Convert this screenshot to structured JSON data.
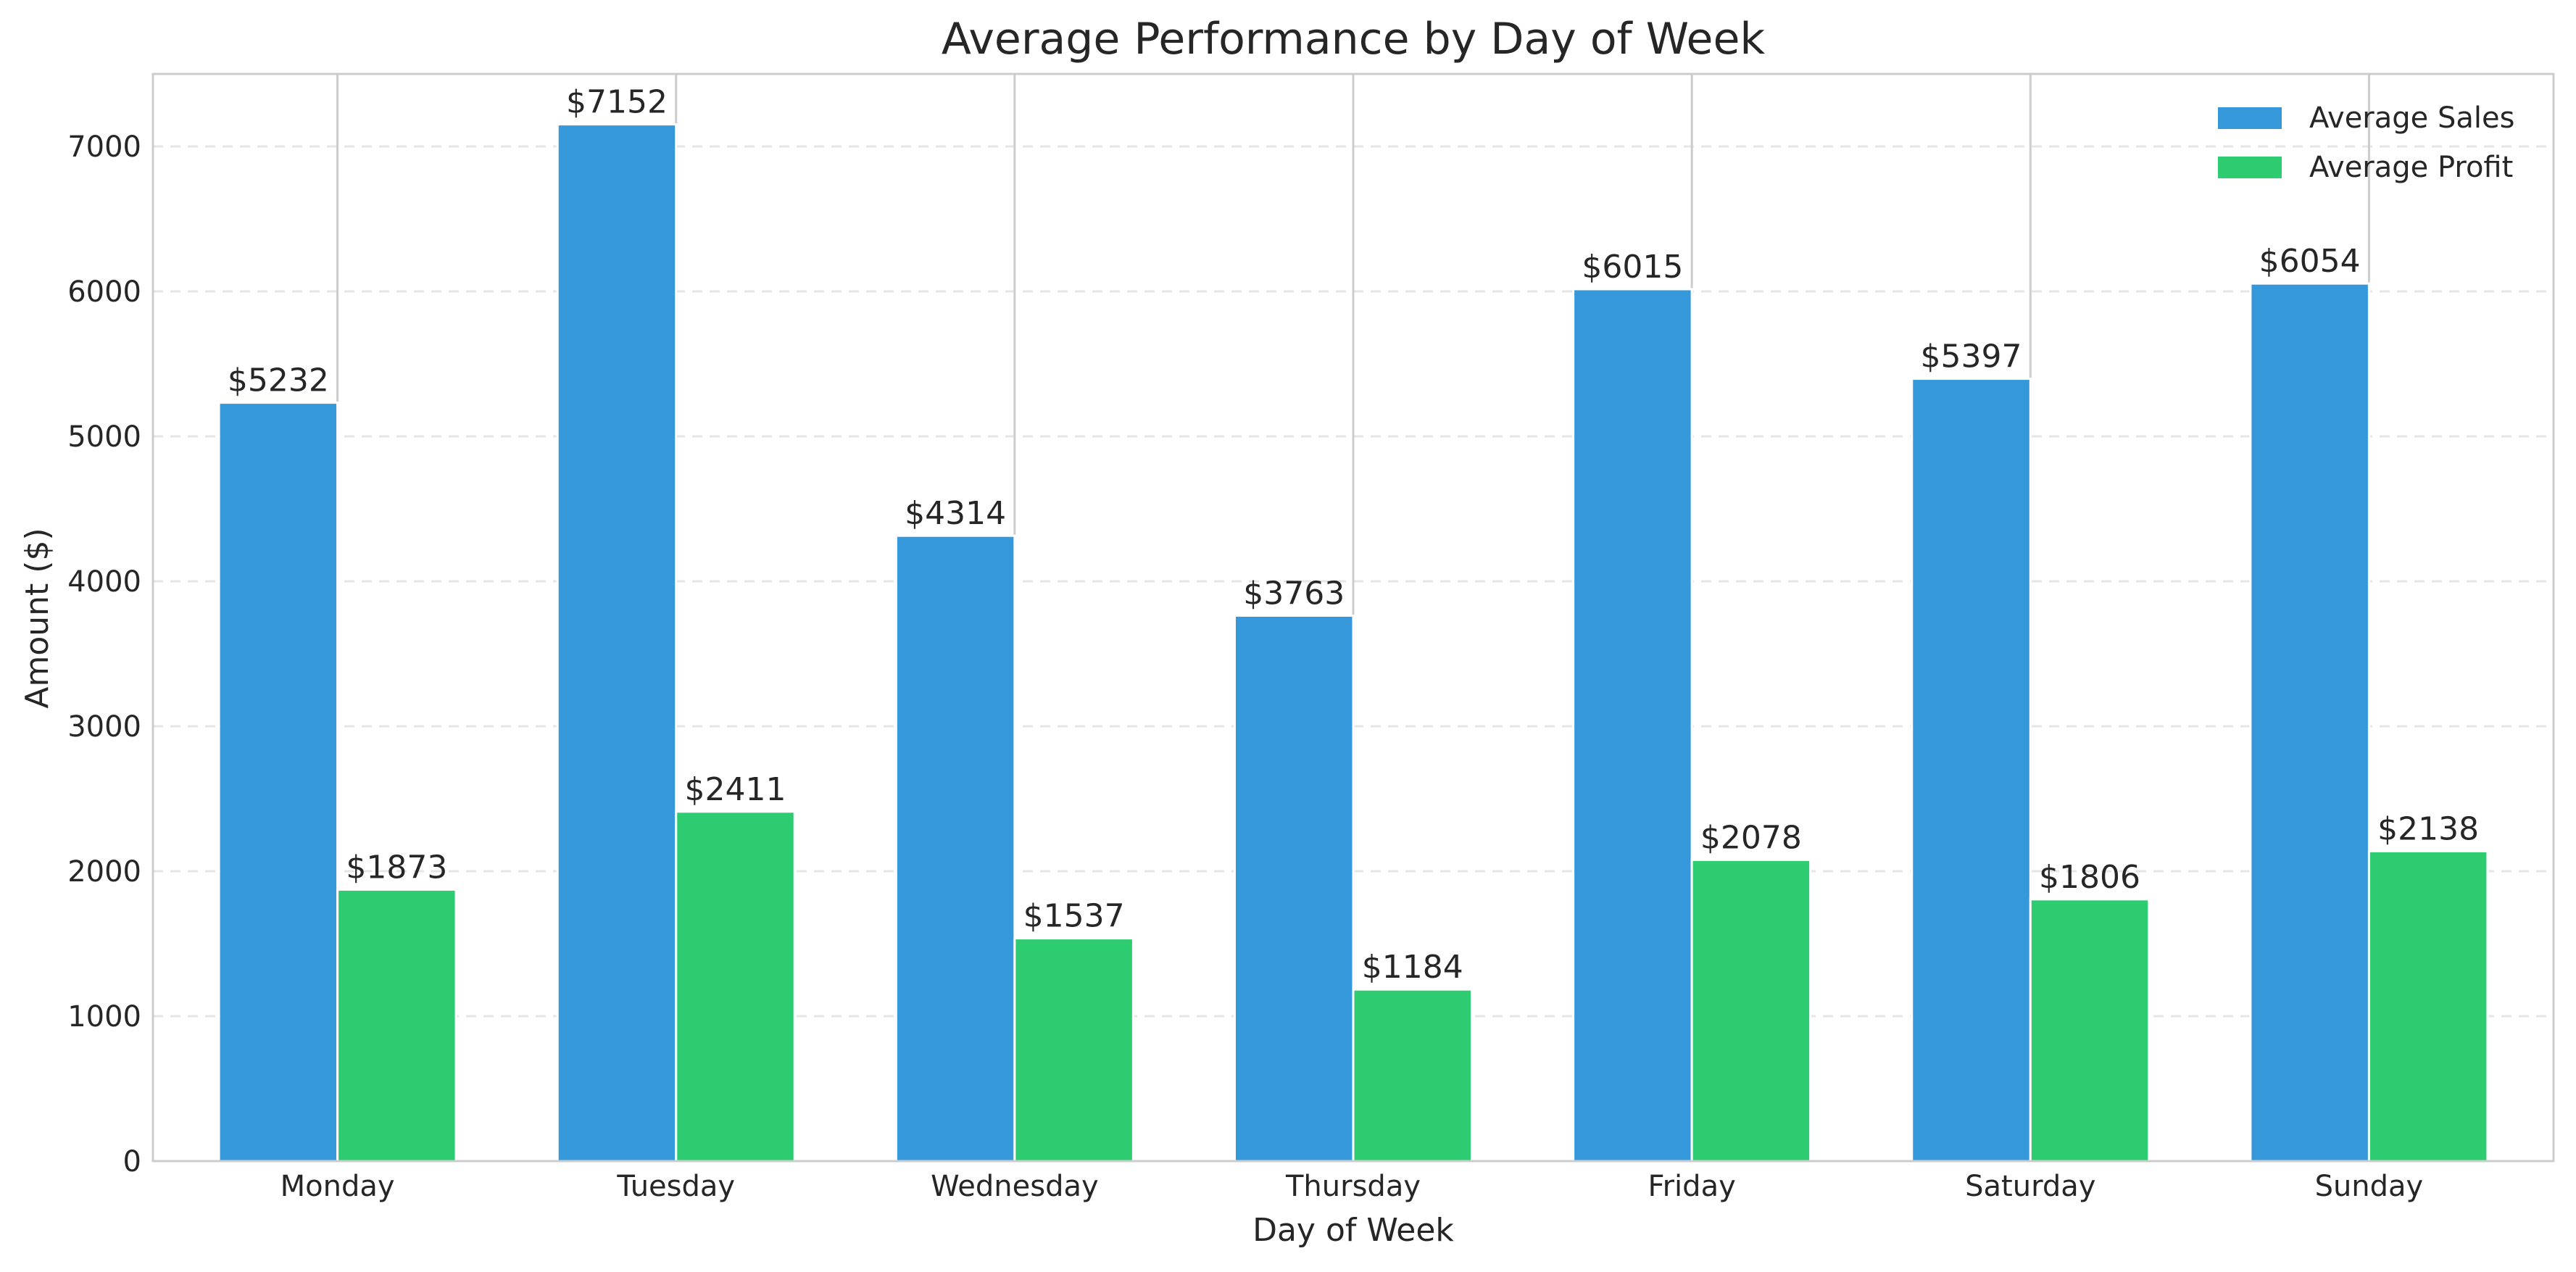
{
  "chart_data": {
    "type": "bar",
    "title": "Average Performance by Day of Week",
    "xlabel": "Day of Week",
    "ylabel": "Amount ($)",
    "categories": [
      "Monday",
      "Tuesday",
      "Wednesday",
      "Thursday",
      "Friday",
      "Saturday",
      "Sunday"
    ],
    "series": [
      {
        "name": "Average Sales",
        "color": "#3498db",
        "values": [
          5232,
          7152,
          4314,
          3763,
          6015,
          5397,
          6054
        ],
        "labels": [
          "$5232",
          "$7152",
          "$4314",
          "$3763",
          "$6015",
          "$5397",
          "$6054"
        ]
      },
      {
        "name": "Average Profit",
        "color": "#2ecc71",
        "values": [
          1873,
          2411,
          1537,
          1184,
          2078,
          1806,
          2138
        ],
        "labels": [
          "$1873",
          "$2411",
          "$1537",
          "$1184",
          "$2078",
          "$1806",
          "$2138"
        ]
      }
    ],
    "ylim": [
      0,
      7500
    ],
    "yticks": [
      0,
      1000,
      2000,
      3000,
      4000,
      5000,
      6000,
      7000
    ],
    "ytick_labels": [
      "0",
      "1000",
      "2000",
      "3000",
      "4000",
      "5000",
      "6000",
      "7000"
    ],
    "grid": true,
    "legend_position": "top-right"
  }
}
